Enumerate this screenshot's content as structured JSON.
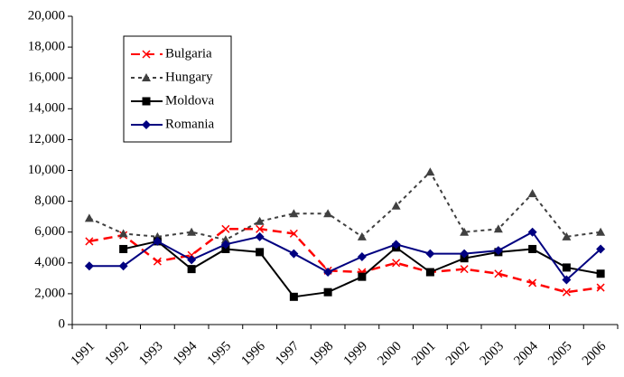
{
  "chart_data": {
    "type": "line",
    "categories": [
      "1991",
      "1992",
      "1993",
      "1994",
      "1995",
      "1996",
      "1997",
      "1998",
      "1999",
      "2000",
      "2001",
      "2002",
      "2003",
      "2004",
      "2005",
      "2006"
    ],
    "series": [
      {
        "name": "Bulgaria",
        "color": "#ff0000",
        "values": [
          5400,
          5800,
          4100,
          4500,
          6200,
          6200,
          5900,
          3500,
          3400,
          4000,
          3400,
          3600,
          3300,
          2700,
          2100,
          2400
        ]
      },
      {
        "name": "Hungary",
        "color": "#404040",
        "values": [
          6900,
          5900,
          5700,
          6000,
          5500,
          6700,
          7200,
          7200,
          5700,
          7700,
          9900,
          6000,
          6200,
          8500,
          5700,
          6000
        ]
      },
      {
        "name": "Moldova",
        "color": "#000000",
        "values": [
          null,
          4900,
          5400,
          3600,
          4900,
          4700,
          1800,
          2100,
          3100,
          5000,
          3400,
          4300,
          4700,
          4900,
          3700,
          3300
        ]
      },
      {
        "name": "Romania",
        "color": "#000080",
        "values": [
          3800,
          3800,
          5400,
          4200,
          5200,
          5700,
          4600,
          3400,
          4400,
          5200,
          4600,
          4600,
          4800,
          6000,
          2900,
          4900
        ]
      }
    ],
    "ylim": [
      0,
      20000
    ],
    "yticks": [
      0,
      {
        "value": 2000,
        "label": "2,000"
      },
      {
        "value": 4000,
        "label": "4,000"
      },
      {
        "value": 6000,
        "label": "6,000"
      },
      {
        "value": 8000,
        "label": "8,000"
      },
      {
        "value": 10000,
        "label": "10,000"
      },
      {
        "value": 12000,
        "label": "12,000"
      },
      {
        "value": 14000,
        "label": "14,000"
      },
      {
        "value": 16000,
        "label": "16,000"
      },
      {
        "value": 18000,
        "label": "18,000"
      },
      {
        "value": 20000,
        "label": "20,000"
      }
    ],
    "grid": false
  }
}
